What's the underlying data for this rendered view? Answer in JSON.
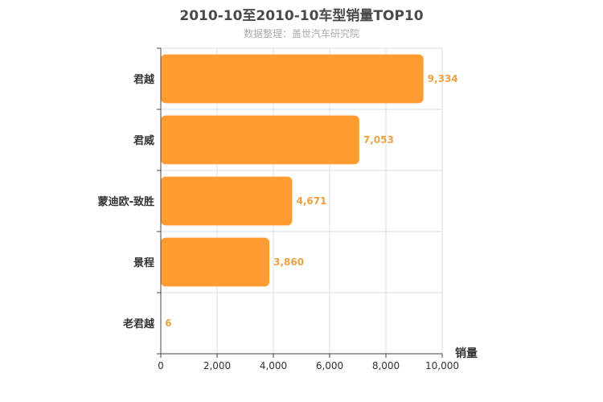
{
  "chart_data": {
    "type": "bar",
    "orientation": "horizontal",
    "title": "2010-10至2010-10车型销量TOP10",
    "subtitle": "数据整理：盖世汽车研究院",
    "categories": [
      "君越",
      "君威",
      "蒙迪欧-致胜",
      "景程",
      "老君越"
    ],
    "values": [
      9334,
      7053,
      4671,
      3860,
      6
    ],
    "value_labels": [
      "9,334",
      "7,053",
      "4,671",
      "3,860",
      "6"
    ],
    "xlabel": "销量",
    "ylabel": "",
    "xlim": [
      0,
      10000
    ],
    "xticks": [
      0,
      2000,
      4000,
      6000,
      8000,
      10000
    ],
    "xtick_labels": [
      "0",
      "2,000",
      "4,000",
      "6,000",
      "8,000",
      "10,000"
    ],
    "grid": true,
    "colors": {
      "bar": "#ff9d33",
      "value_label": "#f0a040",
      "grid": "#dddddd",
      "axis": "#444444"
    }
  }
}
